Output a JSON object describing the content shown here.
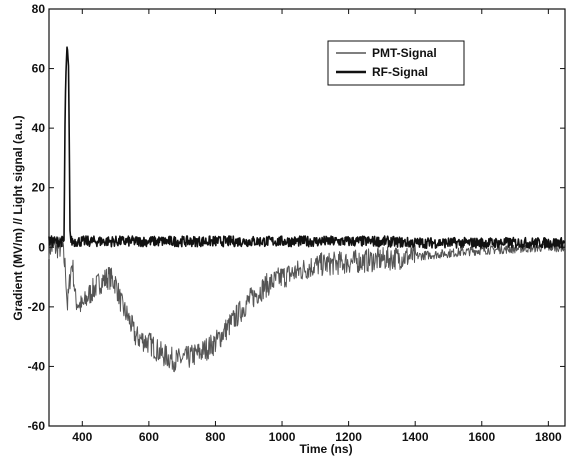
{
  "chart_data": {
    "type": "line",
    "title": "",
    "xlabel": "Time (ns)",
    "ylabel": "Gradient (MV/m) // Light signal (a.u.)",
    "xlim": [
      300,
      1850
    ],
    "ylim": [
      -60,
      80
    ],
    "x_ticks": [
      "400",
      "600",
      "800",
      "1000",
      "1200",
      "1400",
      "1600",
      "1800"
    ],
    "y_ticks": [
      "80",
      "60",
      "40",
      "20",
      "0",
      "-20",
      "-40",
      "-60"
    ],
    "grid": false,
    "legend_position": "top-right",
    "series": [
      {
        "name": "PMT-Signal",
        "color": "#555555",
        "x": [
          300,
          320,
          340,
          350,
          355,
          360,
          365,
          370,
          380,
          400,
          420,
          450,
          480,
          500,
          520,
          540,
          560,
          600,
          640,
          680,
          720,
          760,
          800,
          850,
          900,
          950,
          1000,
          1050,
          1100,
          1200,
          1300,
          1400,
          1500,
          1600,
          1700,
          1800,
          1850
        ],
        "y": [
          0,
          0,
          0,
          -8,
          -20,
          -14,
          -8,
          -5,
          -18,
          -20,
          -16,
          -12,
          -10,
          -12,
          -20,
          -24,
          -30,
          -32,
          -36,
          -38,
          -37,
          -35,
          -32,
          -25,
          -18,
          -13,
          -10,
          -8,
          -6,
          -5,
          -4,
          -3,
          -2,
          -1,
          -0.5,
          0,
          0
        ]
      },
      {
        "name": "RF-Signal",
        "color": "#111111",
        "x": [
          300,
          330,
          345,
          348,
          351,
          353,
          355,
          357,
          359,
          361,
          363,
          365,
          368,
          372,
          380,
          420,
          500,
          600,
          700,
          800,
          900,
          1000,
          1100,
          1200,
          1300,
          1400,
          1500,
          1600,
          1700,
          1800,
          1850
        ],
        "y": [
          2,
          2,
          2,
          40,
          60,
          63,
          66,
          62,
          58,
          30,
          8,
          2,
          2,
          2,
          2,
          2,
          2,
          2,
          2,
          2,
          2,
          2,
          2,
          2,
          2,
          1.5,
          1.5,
          1.5,
          1.5,
          1.5,
          1.5
        ]
      }
    ]
  }
}
